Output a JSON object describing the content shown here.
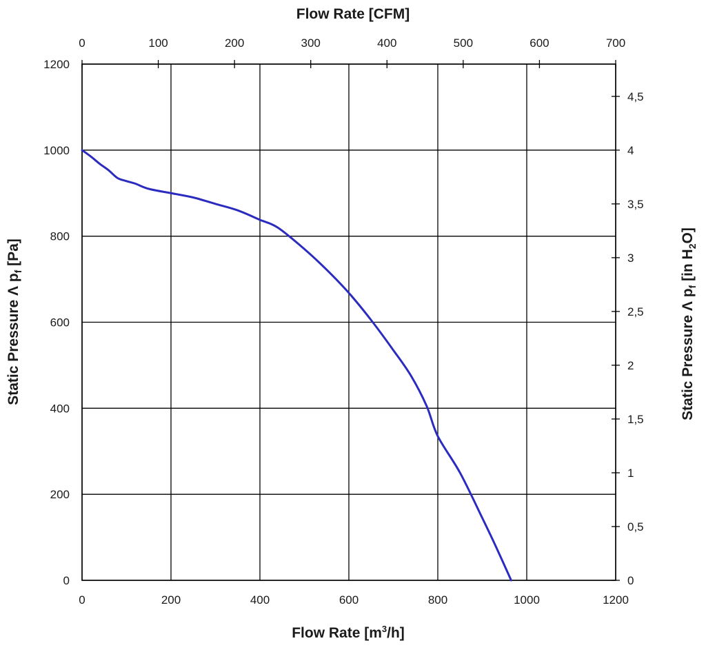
{
  "chart_data": {
    "type": "line",
    "title": "",
    "x_top_label": "Flow Rate [CFM]",
    "x_bottom_label_main": "Flow Rate [m",
    "x_bottom_label_sup": "3",
    "x_bottom_label_end": "/h]",
    "y_left_label_main": "Static Pressure Λ p",
    "y_left_label_sub": "f",
    "y_left_label_end": " [Pa]",
    "y_right_label_main": "Static Pressure Λ p",
    "y_right_label_sub": "f",
    "y_right_label_mid": " [in H",
    "y_right_label_sub2": "2",
    "y_right_label_end": "O]",
    "x_bottom_range": [
      0,
      1200
    ],
    "x_bottom_ticks": [
      "0",
      "200",
      "400",
      "600",
      "800",
      "1000",
      "1200"
    ],
    "x_top_range": [
      0,
      700
    ],
    "x_top_ticks": [
      "0",
      "100",
      "200",
      "300",
      "400",
      "500",
      "600",
      "700"
    ],
    "y_left_range": [
      0,
      1200
    ],
    "y_left_ticks": [
      "0",
      "200",
      "400",
      "600",
      "800",
      "1000",
      "1200"
    ],
    "y_right_range": [
      0,
      4.8
    ],
    "y_right_ticks": [
      "0",
      "0,5",
      "1",
      "1,5",
      "2",
      "2,5",
      "3",
      "3,5",
      "4",
      "4,5"
    ],
    "grid": true,
    "series": [
      {
        "color": "#2b2bbf",
        "x": [
          0,
          20,
          40,
          60,
          80,
          100,
          120,
          150,
          200,
          250,
          300,
          350,
          400,
          440,
          500,
          550,
          600,
          650,
          700,
          740,
          775,
          800,
          850,
          900,
          930,
          965
        ],
        "y": [
          1000,
          985,
          968,
          953,
          935,
          928,
          922,
          910,
          900,
          890,
          875,
          860,
          838,
          820,
          770,
          722,
          668,
          605,
          535,
          475,
          405,
          335,
          250,
          145,
          80,
          0
        ]
      }
    ]
  }
}
